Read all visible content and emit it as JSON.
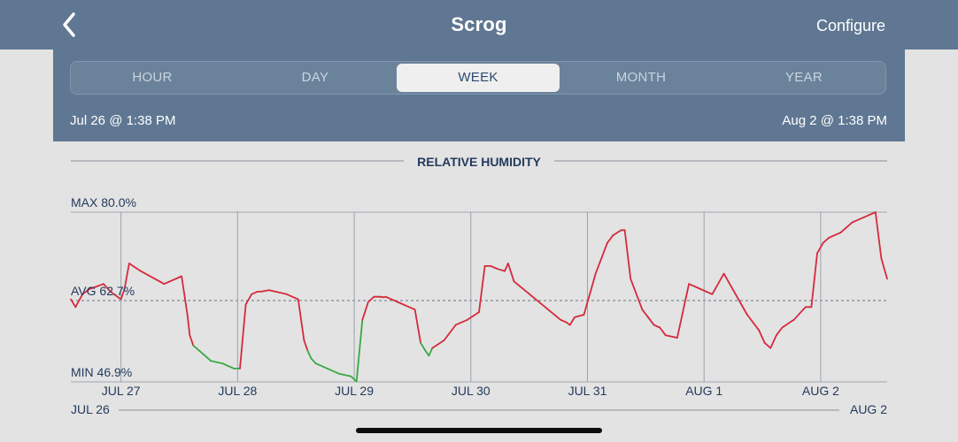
{
  "nav": {
    "title": "Scrog",
    "configure": "Configure",
    "back_icon": "chevron-left-icon"
  },
  "tabs": [
    {
      "label": "HOUR",
      "active": false
    },
    {
      "label": "DAY",
      "active": false
    },
    {
      "label": "WEEK",
      "active": true
    },
    {
      "label": "MONTH",
      "active": false
    },
    {
      "label": "YEAR",
      "active": false
    }
  ],
  "range": {
    "start": "Jul 26 @ 1:38 PM",
    "end": "Aug 2 @ 1:38 PM"
  },
  "colors": {
    "header": "#5f7792",
    "line_high": "#d42a3c",
    "line_low": "#3aa846",
    "grid": "#9aa3ad",
    "text": "#243a5e"
  },
  "chart_data": {
    "type": "line",
    "title": "RELATIVE HUMIDITY",
    "max_label": "MAX 80.0%",
    "avg_label": "AVG 62.7%",
    "min_label": "MIN 46.9%",
    "ylim": [
      46.9,
      80.0
    ],
    "avg": 62.7,
    "low_threshold": 54.0,
    "x_unit": "days since Jul 26 1:38 PM",
    "xlim": [
      0,
      7
    ],
    "tick_labels": [
      "JUL 27",
      "JUL 28",
      "JUL 29",
      "JUL 30",
      "JUL 31",
      "AUG 1",
      "AUG 2"
    ],
    "tick_positions": [
      0.43,
      1.43,
      2.43,
      3.43,
      4.43,
      5.43,
      6.43
    ],
    "range_start_label": "JUL 26",
    "range_end_label": "AUG 2",
    "series": [
      {
        "name": "Relative Humidity",
        "x": [
          0,
          0.04,
          0.1,
          0.16,
          0.22,
          0.28,
          0.34,
          0.4,
          0.43,
          0.46,
          0.5,
          0.6,
          0.8,
          0.95,
          1.0,
          1.02,
          1.05,
          1.1,
          1.2,
          1.3,
          1.4,
          1.45,
          1.5,
          1.55,
          1.6,
          1.63,
          1.7,
          1.85,
          1.95,
          2.0,
          2.03,
          2.06,
          2.1,
          2.2,
          2.3,
          2.4,
          2.45,
          2.5,
          2.55,
          2.6,
          2.65,
          2.68,
          2.7,
          2.8,
          2.95,
          3.0,
          3.04,
          3.07,
          3.1,
          3.2,
          3.3,
          3.4,
          3.5,
          3.55,
          3.6,
          3.65,
          3.72,
          3.75,
          3.8,
          4.2,
          4.25,
          4.28,
          4.32,
          4.4,
          4.5,
          4.55,
          4.6,
          4.65,
          4.72,
          4.75,
          4.8,
          4.9,
          4.95,
          5.0,
          5.05,
          5.1,
          5.2,
          5.3,
          5.4,
          5.45,
          5.5,
          5.6,
          5.8,
          5.9,
          5.95,
          6.0,
          6.05,
          6.1,
          6.2,
          6.28,
          6.3,
          6.35,
          6.4,
          6.45,
          6.5,
          6.55,
          6.6,
          6.65,
          6.7,
          6.8,
          6.9,
          6.95,
          7.0
        ],
        "y": [
          63,
          61.5,
          64,
          65,
          65.5,
          66,
          64.5,
          63.5,
          63,
          65,
          70,
          68.5,
          66,
          67.5,
          60,
          56,
          54,
          53,
          51,
          50.5,
          49.5,
          49.5,
          62,
          64,
          64.5,
          64.5,
          64.8,
          64,
          63,
          55,
          53,
          51.5,
          50.5,
          49.5,
          48.5,
          48,
          47,
          59,
          62.5,
          63.5,
          63.5,
          63.4,
          63.5,
          62.5,
          61,
          54.5,
          53,
          52,
          53.5,
          55,
          58,
          59,
          60.5,
          69.5,
          69.5,
          69,
          68.5,
          70,
          66.5,
          59,
          58.5,
          58,
          59.5,
          60,
          68,
          71,
          74,
          75.5,
          76.5,
          76.5,
          67,
          61,
          59.5,
          58,
          57.5,
          56,
          55.5,
          66,
          65,
          64.5,
          64,
          68,
          60,
          57,
          54.5,
          53.5,
          56,
          57.5,
          59,
          61,
          61.5,
          61.5,
          72,
          74,
          75,
          75.5,
          76,
          77,
          78,
          79,
          80,
          71,
          67
        ]
      }
    ]
  }
}
